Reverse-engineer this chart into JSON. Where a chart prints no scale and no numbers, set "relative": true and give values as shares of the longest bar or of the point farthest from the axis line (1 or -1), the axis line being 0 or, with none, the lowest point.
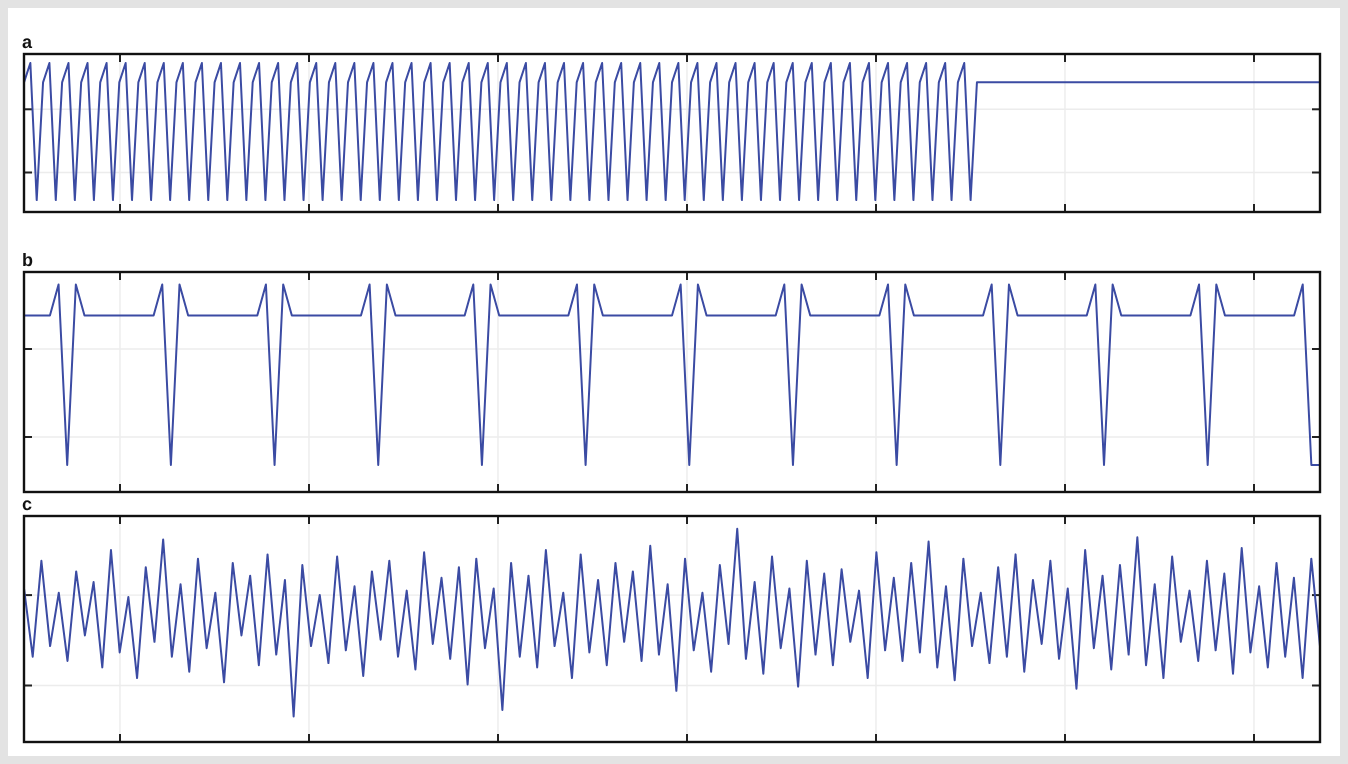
{
  "chart_data": [
    {
      "type": "line",
      "title": "a",
      "relative": true,
      "grid": true,
      "categories": [
        null,
        null,
        null,
        null,
        null,
        null,
        null,
        null,
        null,
        null,
        null,
        null,
        null,
        null,
        null,
        null,
        null,
        null,
        null,
        null,
        null,
        null,
        null,
        null,
        null,
        null,
        null,
        null,
        null,
        null,
        null,
        null,
        null,
        null,
        null,
        null,
        null,
        null,
        null,
        null,
        null,
        null,
        null,
        null,
        null,
        null,
        null,
        null,
        null,
        null,
        null,
        null,
        null,
        null,
        null,
        null,
        null,
        null,
        null,
        null,
        null,
        null,
        null,
        null,
        null,
        null,
        null,
        null,
        null,
        null,
        null,
        null,
        null,
        null,
        null,
        null,
        null,
        null,
        null,
        null,
        null,
        null,
        null,
        null,
        null,
        null,
        null,
        null,
        null,
        null,
        null,
        null,
        null,
        null,
        null,
        null,
        null,
        null,
        null,
        null,
        null,
        null,
        null,
        null,
        null,
        null,
        null,
        null,
        null,
        null,
        null,
        null,
        null,
        null,
        null,
        null,
        null,
        null,
        null,
        null,
        null,
        null,
        null,
        null,
        null,
        null,
        null,
        null,
        null,
        null,
        null,
        null,
        null,
        null,
        null,
        null,
        null,
        null,
        null,
        null,
        null,
        null,
        null,
        null,
        null,
        null,
        null,
        null,
        null,
        null,
        null,
        null,
        null,
        null,
        null,
        null,
        null,
        null,
        null,
        null,
        null,
        null,
        null,
        null,
        null,
        null,
        null,
        null,
        null,
        null,
        null,
        null,
        null,
        null,
        null,
        null,
        null,
        null,
        null,
        null,
        null,
        null,
        null,
        null,
        null,
        null,
        null,
        null,
        null,
        null,
        null,
        null,
        null,
        null,
        null,
        null,
        null,
        null,
        null,
        null,
        null,
        null,
        null,
        null,
        null
      ],
      "series": [
        {
          "color": "#3b4ba3",
          "values": [
            0.87,
            1,
            0.08,
            0.87,
            1,
            0.08,
            0.87,
            1,
            0.08,
            0.87,
            1,
            0.08,
            0.87,
            1,
            0.08,
            0.87,
            1,
            0.08,
            0.87,
            1,
            0.08,
            0.87,
            1,
            0.08,
            0.87,
            1,
            0.08,
            0.87,
            1,
            0.08,
            0.87,
            1,
            0.08,
            0.87,
            1,
            0.08,
            0.87,
            1,
            0.08,
            0.87,
            1,
            0.08,
            0.87,
            1,
            0.08,
            0.87,
            1,
            0.08,
            0.87,
            1,
            0.08,
            0.87,
            1,
            0.08,
            0.87,
            1,
            0.08,
            0.87,
            1,
            0.08,
            0.87,
            1,
            0.08,
            0.87,
            1,
            0.08,
            0.87,
            1,
            0.08,
            0.87,
            1,
            0.08,
            0.87,
            1,
            0.08,
            0.87,
            1,
            0.08,
            0.87,
            1,
            0.08,
            0.87,
            1,
            0.08,
            0.87,
            1,
            0.08,
            0.87,
            1,
            0.08,
            0.87,
            1,
            0.08,
            0.87,
            1,
            0.08,
            0.87,
            1,
            0.08,
            0.87,
            1,
            0.08,
            0.87,
            1,
            0.08,
            0.87,
            1,
            0.08,
            0.87,
            1,
            0.08,
            0.87,
            1,
            0.08,
            0.87,
            1,
            0.08,
            0.87,
            1,
            0.08,
            0.87,
            1,
            0.08,
            0.87,
            1,
            0.08,
            0.87,
            1,
            0.08,
            0.87,
            1,
            0.08,
            0.87,
            1,
            0.08,
            0.87,
            1,
            0.08,
            0.87,
            1,
            0.08,
            0.87,
            1,
            0.08,
            0.87,
            1,
            0.08,
            0.87,
            1,
            0.08,
            0.87,
            0.87,
            0.87,
            0.87,
            0.87,
            0.87,
            0.87,
            0.87,
            0.87,
            0.87,
            0.87,
            0.87,
            0.87,
            0.87,
            0.87,
            0.87,
            0.87,
            0.87,
            0.87,
            0.87,
            0.87,
            0.87,
            0.87,
            0.87,
            0.87,
            0.87,
            0.87,
            0.87,
            0.87,
            0.87,
            0.87,
            0.87,
            0.87,
            0.87,
            0.87,
            0.87,
            0.87,
            0.87,
            0.87,
            0.87,
            0.87,
            0.87,
            0.87,
            0.87,
            0.87,
            0.87,
            0.87,
            0.87,
            0.87,
            0.87,
            0.87,
            0.87,
            0.87,
            0.87,
            0.87
          ]
        }
      ]
    },
    {
      "type": "line",
      "title": "b",
      "relative": true,
      "grid": true,
      "categories": [
        null,
        null,
        null,
        null,
        null,
        null,
        null,
        null,
        null,
        null,
        null,
        null,
        null,
        null,
        null,
        null,
        null,
        null,
        null,
        null,
        null,
        null,
        null,
        null,
        null,
        null,
        null,
        null,
        null,
        null,
        null,
        null,
        null,
        null,
        null,
        null,
        null,
        null,
        null,
        null,
        null,
        null,
        null,
        null,
        null,
        null,
        null,
        null,
        null,
        null,
        null,
        null,
        null,
        null,
        null,
        null,
        null,
        null,
        null,
        null,
        null,
        null,
        null,
        null,
        null,
        null,
        null,
        null,
        null,
        null,
        null,
        null,
        null,
        null,
        null,
        null,
        null,
        null,
        null,
        null,
        null,
        null,
        null,
        null,
        null,
        null,
        null,
        null,
        null,
        null,
        null,
        null,
        null,
        null,
        null,
        null,
        null,
        null,
        null,
        null,
        null,
        null,
        null,
        null,
        null,
        null,
        null,
        null,
        null,
        null,
        null,
        null,
        null,
        null,
        null,
        null,
        null,
        null,
        null,
        null,
        null,
        null,
        null,
        null,
        null,
        null,
        null,
        null,
        null,
        null,
        null,
        null,
        null,
        null,
        null,
        null,
        null,
        null,
        null,
        null,
        null,
        null,
        null,
        null,
        null,
        null,
        null,
        null,
        null,
        null,
        null
      ],
      "series": [
        {
          "color": "#3b4ba3",
          "values": [
            0.85,
            0.85,
            0.85,
            0.85,
            1,
            0.13,
            1,
            0.85,
            0.85,
            0.85,
            0.85,
            0.85,
            0.85,
            0.85,
            0.85,
            0.85,
            1,
            0.13,
            1,
            0.85,
            0.85,
            0.85,
            0.85,
            0.85,
            0.85,
            0.85,
            0.85,
            0.85,
            1,
            0.13,
            1,
            0.85,
            0.85,
            0.85,
            0.85,
            0.85,
            0.85,
            0.85,
            0.85,
            0.85,
            1,
            0.13,
            1,
            0.85,
            0.85,
            0.85,
            0.85,
            0.85,
            0.85,
            0.85,
            0.85,
            0.85,
            1,
            0.13,
            1,
            0.85,
            0.85,
            0.85,
            0.85,
            0.85,
            0.85,
            0.85,
            0.85,
            0.85,
            1,
            0.13,
            1,
            0.85,
            0.85,
            0.85,
            0.85,
            0.85,
            0.85,
            0.85,
            0.85,
            0.85,
            1,
            0.13,
            1,
            0.85,
            0.85,
            0.85,
            0.85,
            0.85,
            0.85,
            0.85,
            0.85,
            0.85,
            1,
            0.13,
            1,
            0.85,
            0.85,
            0.85,
            0.85,
            0.85,
            0.85,
            0.85,
            0.85,
            0.85,
            1,
            0.13,
            1,
            0.85,
            0.85,
            0.85,
            0.85,
            0.85,
            0.85,
            0.85,
            0.85,
            0.85,
            1,
            0.13,
            1,
            0.85,
            0.85,
            0.85,
            0.85,
            0.85,
            0.85,
            0.85,
            0.85,
            0.85,
            1,
            0.13,
            1,
            0.85,
            0.85,
            0.85,
            0.85,
            0.85,
            0.85,
            0.85,
            0.85,
            0.85,
            1,
            0.13,
            1,
            0.85,
            0.85,
            0.85,
            0.85,
            0.85,
            0.85,
            0.85,
            0.85,
            0.85,
            1,
            0.13,
            0.13
          ]
        }
      ]
    },
    {
      "type": "line",
      "title": "c",
      "relative": true,
      "grid": true,
      "categories": [
        null,
        null,
        null,
        null,
        null,
        null,
        null,
        null,
        null,
        null,
        null,
        null,
        null,
        null,
        null,
        null,
        null,
        null,
        null,
        null,
        null,
        null,
        null,
        null,
        null,
        null,
        null,
        null,
        null,
        null,
        null,
        null,
        null,
        null,
        null,
        null,
        null,
        null,
        null,
        null,
        null,
        null,
        null,
        null,
        null,
        null,
        null,
        null,
        null,
        null,
        null,
        null,
        null,
        null,
        null,
        null,
        null,
        null,
        null,
        null,
        null,
        null,
        null,
        null,
        null,
        null,
        null,
        null,
        null,
        null,
        null,
        null,
        null,
        null,
        null,
        null,
        null,
        null,
        null,
        null,
        null,
        null,
        null,
        null,
        null,
        null,
        null,
        null,
        null,
        null,
        null,
        null,
        null,
        null,
        null,
        null,
        null,
        null,
        null,
        null,
        null,
        null,
        null,
        null,
        null,
        null,
        null,
        null,
        null,
        null,
        null,
        null,
        null,
        null,
        null,
        null,
        null,
        null,
        null,
        null,
        null,
        null,
        null,
        null,
        null,
        null,
        null,
        null,
        null,
        null,
        null,
        null,
        null,
        null,
        null,
        null,
        null,
        null,
        null,
        null,
        null,
        null,
        null,
        null,
        null,
        null,
        null,
        null,
        null,
        null
      ],
      "series": [
        {
          "color": "#3b4ba3",
          "values": [
            0.72,
            0.4,
            0.85,
            0.45,
            0.7,
            0.38,
            0.8,
            0.5,
            0.75,
            0.35,
            0.9,
            0.42,
            0.68,
            0.3,
            0.82,
            0.47,
            0.95,
            0.4,
            0.74,
            0.33,
            0.86,
            0.44,
            0.7,
            0.28,
            0.84,
            0.5,
            0.78,
            0.36,
            0.88,
            0.41,
            0.76,
            0.12,
            0.83,
            0.45,
            0.69,
            0.37,
            0.87,
            0.43,
            0.73,
            0.31,
            0.8,
            0.48,
            0.85,
            0.4,
            0.71,
            0.34,
            0.89,
            0.46,
            0.77,
            0.39,
            0.82,
            0.27,
            0.86,
            0.44,
            0.72,
            0.15,
            0.84,
            0.4,
            0.78,
            0.35,
            0.9,
            0.45,
            0.7,
            0.3,
            0.88,
            0.42,
            0.76,
            0.36,
            0.84,
            0.47,
            0.8,
            0.38,
            0.92,
            0.41,
            0.74,
            0.24,
            0.86,
            0.43,
            0.7,
            0.33,
            0.83,
            0.46,
            1,
            0.39,
            0.75,
            0.32,
            0.87,
            0.44,
            0.72,
            0.26,
            0.85,
            0.41,
            0.79,
            0.36,
            0.81,
            0.47,
            0.71,
            0.3,
            0.89,
            0.43,
            0.77,
            0.38,
            0.84,
            0.42,
            0.94,
            0.35,
            0.73,
            0.29,
            0.86,
            0.45,
            0.7,
            0.37,
            0.82,
            0.4,
            0.88,
            0.33,
            0.76,
            0.46,
            0.85,
            0.39,
            0.72,
            0.25,
            0.9,
            0.44,
            0.78,
            0.34,
            0.83,
            0.41,
            0.96,
            0.36,
            0.74,
            0.3,
            0.87,
            0.47,
            0.71,
            0.38,
            0.85,
            0.43,
            0.79,
            0.32,
            0.91,
            0.42,
            0.73,
            0.35,
            0.84,
            0.4,
            0.77,
            0.3,
            0.86,
            0.45
          ]
        }
      ]
    }
  ]
}
